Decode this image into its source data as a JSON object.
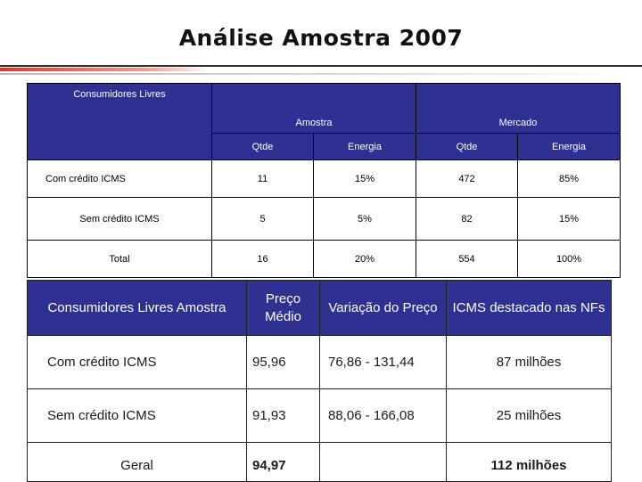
{
  "title": "Análise Amostra 2007",
  "colors": {
    "header_bg": "#2e3192",
    "accent_red": "#e6332a"
  },
  "upper_table": {
    "headers": {
      "row_label": "Consumidores Livres",
      "group_sample": "Amostra",
      "group_market": "Mercado",
      "qty": "Qtde",
      "energy": "Energia"
    },
    "rows": [
      {
        "label": "Com crédito ICMS",
        "sample_qty": "11",
        "sample_energy": "15%",
        "market_qty": "472",
        "market_energy": "85%"
      },
      {
        "label": "Sem crédito ICMS",
        "sample_qty": "5",
        "sample_energy": "5%",
        "market_qty": "82",
        "market_energy": "15%"
      },
      {
        "label": "Total",
        "sample_qty": "16",
        "sample_energy": "20%",
        "market_qty": "554",
        "market_energy": "100%"
      }
    ]
  },
  "lower_table": {
    "headers": {
      "row_label": "Consumidores Livres Amostra",
      "avg_price": "Preço Médio",
      "price_variation": "Variação do Preço",
      "icms": "ICMS destacado nas NFs"
    },
    "rows": [
      {
        "label": "Com crédito ICMS",
        "avg_price": "95,96",
        "price_variation": "76,86 - 131,44",
        "icms": "87 milhões"
      },
      {
        "label": "Sem crédito ICMS",
        "avg_price": "91,93",
        "price_variation": "88,06 - 166,08",
        "icms": "25 milhões"
      }
    ],
    "total": {
      "label": "Geral",
      "avg_price": "94,97",
      "price_variation": "",
      "icms": "112 milhões"
    }
  }
}
